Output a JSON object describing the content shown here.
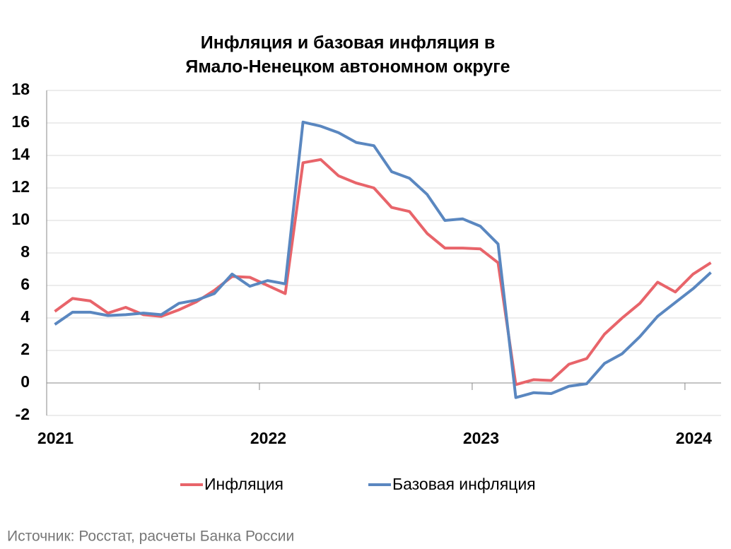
{
  "chart_data": {
    "type": "line",
    "title": [
      "Инфляция и базовая инфляция в",
      "Ямало-Ненецком автономном округе"
    ],
    "categories": [
      "2021",
      null,
      null,
      null,
      null,
      null,
      null,
      null,
      null,
      null,
      null,
      null,
      "2022",
      null,
      null,
      null,
      null,
      null,
      null,
      null,
      null,
      null,
      null,
      null,
      "2023",
      null,
      null,
      null,
      null,
      null,
      null,
      null,
      null,
      null,
      null,
      null,
      "2024",
      null
    ],
    "series": [
      {
        "name": "Инфляция",
        "color": "#e8646a",
        "values": [
          4.4,
          5.2,
          5.05,
          4.3,
          4.65,
          4.2,
          4.1,
          4.5,
          5.0,
          5.7,
          6.55,
          6.5,
          6.0,
          5.5,
          13.55,
          13.75,
          12.75,
          12.3,
          12.0,
          10.8,
          10.55,
          9.2,
          8.3,
          8.3,
          8.25,
          7.4,
          -0.1,
          0.2,
          0.15,
          1.15,
          1.5,
          3.0,
          4.0,
          4.9,
          6.2,
          5.6,
          6.7,
          7.4
        ]
      },
      {
        "name": "Базовая инфляция",
        "color": "#5a87c0",
        "values": [
          3.6,
          4.35,
          4.35,
          4.15,
          4.2,
          4.3,
          4.2,
          4.9,
          5.1,
          5.5,
          6.7,
          5.95,
          6.3,
          6.1,
          16.05,
          15.8,
          15.4,
          14.8,
          14.6,
          13.0,
          12.6,
          11.6,
          10.0,
          10.1,
          9.65,
          8.55,
          -0.9,
          -0.6,
          -0.65,
          -0.2,
          -0.05,
          1.2,
          1.8,
          2.85,
          4.1,
          4.95,
          5.8,
          6.8
        ]
      }
    ],
    "ylim": [
      -2,
      18
    ],
    "yticks": [
      -2,
      0,
      2,
      4,
      6,
      8,
      10,
      12,
      14,
      16,
      18
    ],
    "grid": true,
    "legend": "bottom",
    "source": "Источник: Росстат, расчеты Банка России"
  }
}
